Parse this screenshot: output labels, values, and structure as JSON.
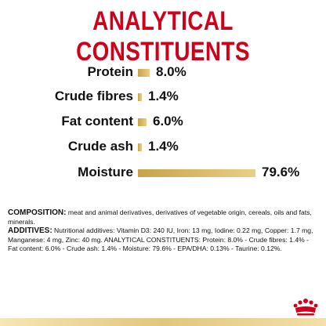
{
  "header": {
    "title": "ANALYTICAL CONSTITUENTS"
  },
  "constituents": [
    {
      "label": "Protein",
      "value_text": "8.0%",
      "value": 8.0
    },
    {
      "label": "Crude fibres",
      "value_text": "1.4%",
      "value": 1.4
    },
    {
      "label": "Fat content",
      "value_text": "6.0%",
      "value": 6.0
    },
    {
      "label": "Crude ash",
      "value_text": "1.4%",
      "value": 1.4
    },
    {
      "label": "Moisture",
      "value_text": "79.6%",
      "value": 79.6
    }
  ],
  "composition": {
    "composition_label": "COMPOSITION:",
    "composition_text": " meat and animal derivatives, derivatives of vegetable origin, cereals, oils and fats, minerals.",
    "additives_label": "ADDITIVES:",
    "additives_text": " Nutritional additives: Vitamin D3: 240 IU, Iron: 13 mg, Iodine: 0.22 mg, Copper: 1.7 mg, Manganese: 4 mg, Zinc: 40 mg. ANALYTICAL CONSTITUENTS: Protein: 8.0% - Crude fibres: 1.4% - Fat content: 6.0% - Crude ash: 1.4% - Moisture: 79.6% - EPA/DHA: 0.13% - Taurine: 0.12%."
  },
  "branding": {
    "logo": "royal-canin-crown-logo",
    "accent_color": "#d0001b",
    "bar_color": "#d9b865"
  }
}
